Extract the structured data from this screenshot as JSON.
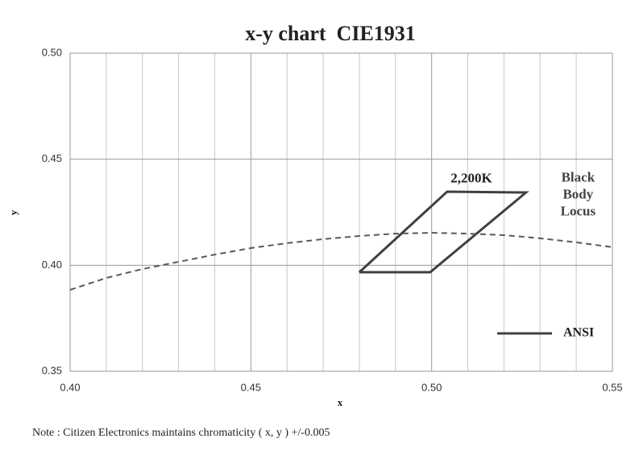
{
  "chart_data": {
    "type": "line",
    "title": "x-y chart  CIE1931",
    "x_label": "x",
    "y_label": "y",
    "xlim": [
      0.4,
      0.55
    ],
    "ylim": [
      0.35,
      0.5
    ],
    "xticks": [
      {
        "value": 0.4,
        "label": "0.40"
      },
      {
        "value": 0.45,
        "label": "0.45"
      },
      {
        "value": 0.5,
        "label": "0.50"
      },
      {
        "value": 0.55,
        "label": "0.55"
      }
    ],
    "yticks": [
      {
        "value": 0.35,
        "label": "0.35"
      },
      {
        "value": 0.4,
        "label": "0.40"
      },
      {
        "value": 0.45,
        "label": "0.45"
      },
      {
        "value": 0.5,
        "label": "0.50"
      }
    ],
    "x_minor_grid": [
      0.41,
      0.42,
      0.43,
      0.44,
      0.46,
      0.47,
      0.48,
      0.49,
      0.51,
      0.52,
      0.53,
      0.54
    ],
    "grid": true,
    "series": [
      {
        "name": "ANSI",
        "color": "#404040",
        "dash": false,
        "x": [
          0.48,
          0.5043,
          0.5261,
          0.4996,
          0.48
        ],
        "y": [
          0.3967,
          0.4347,
          0.4343,
          0.3967,
          0.3967
        ]
      },
      {
        "color": "#595959",
        "dash": true,
        "x": [
          0.4,
          0.41,
          0.42,
          0.43,
          0.44,
          0.45,
          0.46,
          0.47,
          0.48,
          0.49,
          0.5,
          0.51,
          0.52,
          0.53,
          0.54,
          0.55
        ],
        "y": [
          0.3884,
          0.394,
          0.3982,
          0.4016,
          0.405,
          0.4081,
          0.4104,
          0.4123,
          0.4138,
          0.4149,
          0.4153,
          0.4149,
          0.4142,
          0.4127,
          0.4108,
          0.4085
        ]
      }
    ],
    "annotations": [
      {
        "text": "2,200K",
        "x": 0.511,
        "y": 0.4405
      },
      {
        "text": [
          "Black",
          "Body",
          "Locus"
        ],
        "x": 0.5405,
        "y": 0.441
      }
    ],
    "legend": "lower right",
    "note": "Note : Citizen Electronics maintains chromaticity ( x, y ) +/-0.005"
  }
}
